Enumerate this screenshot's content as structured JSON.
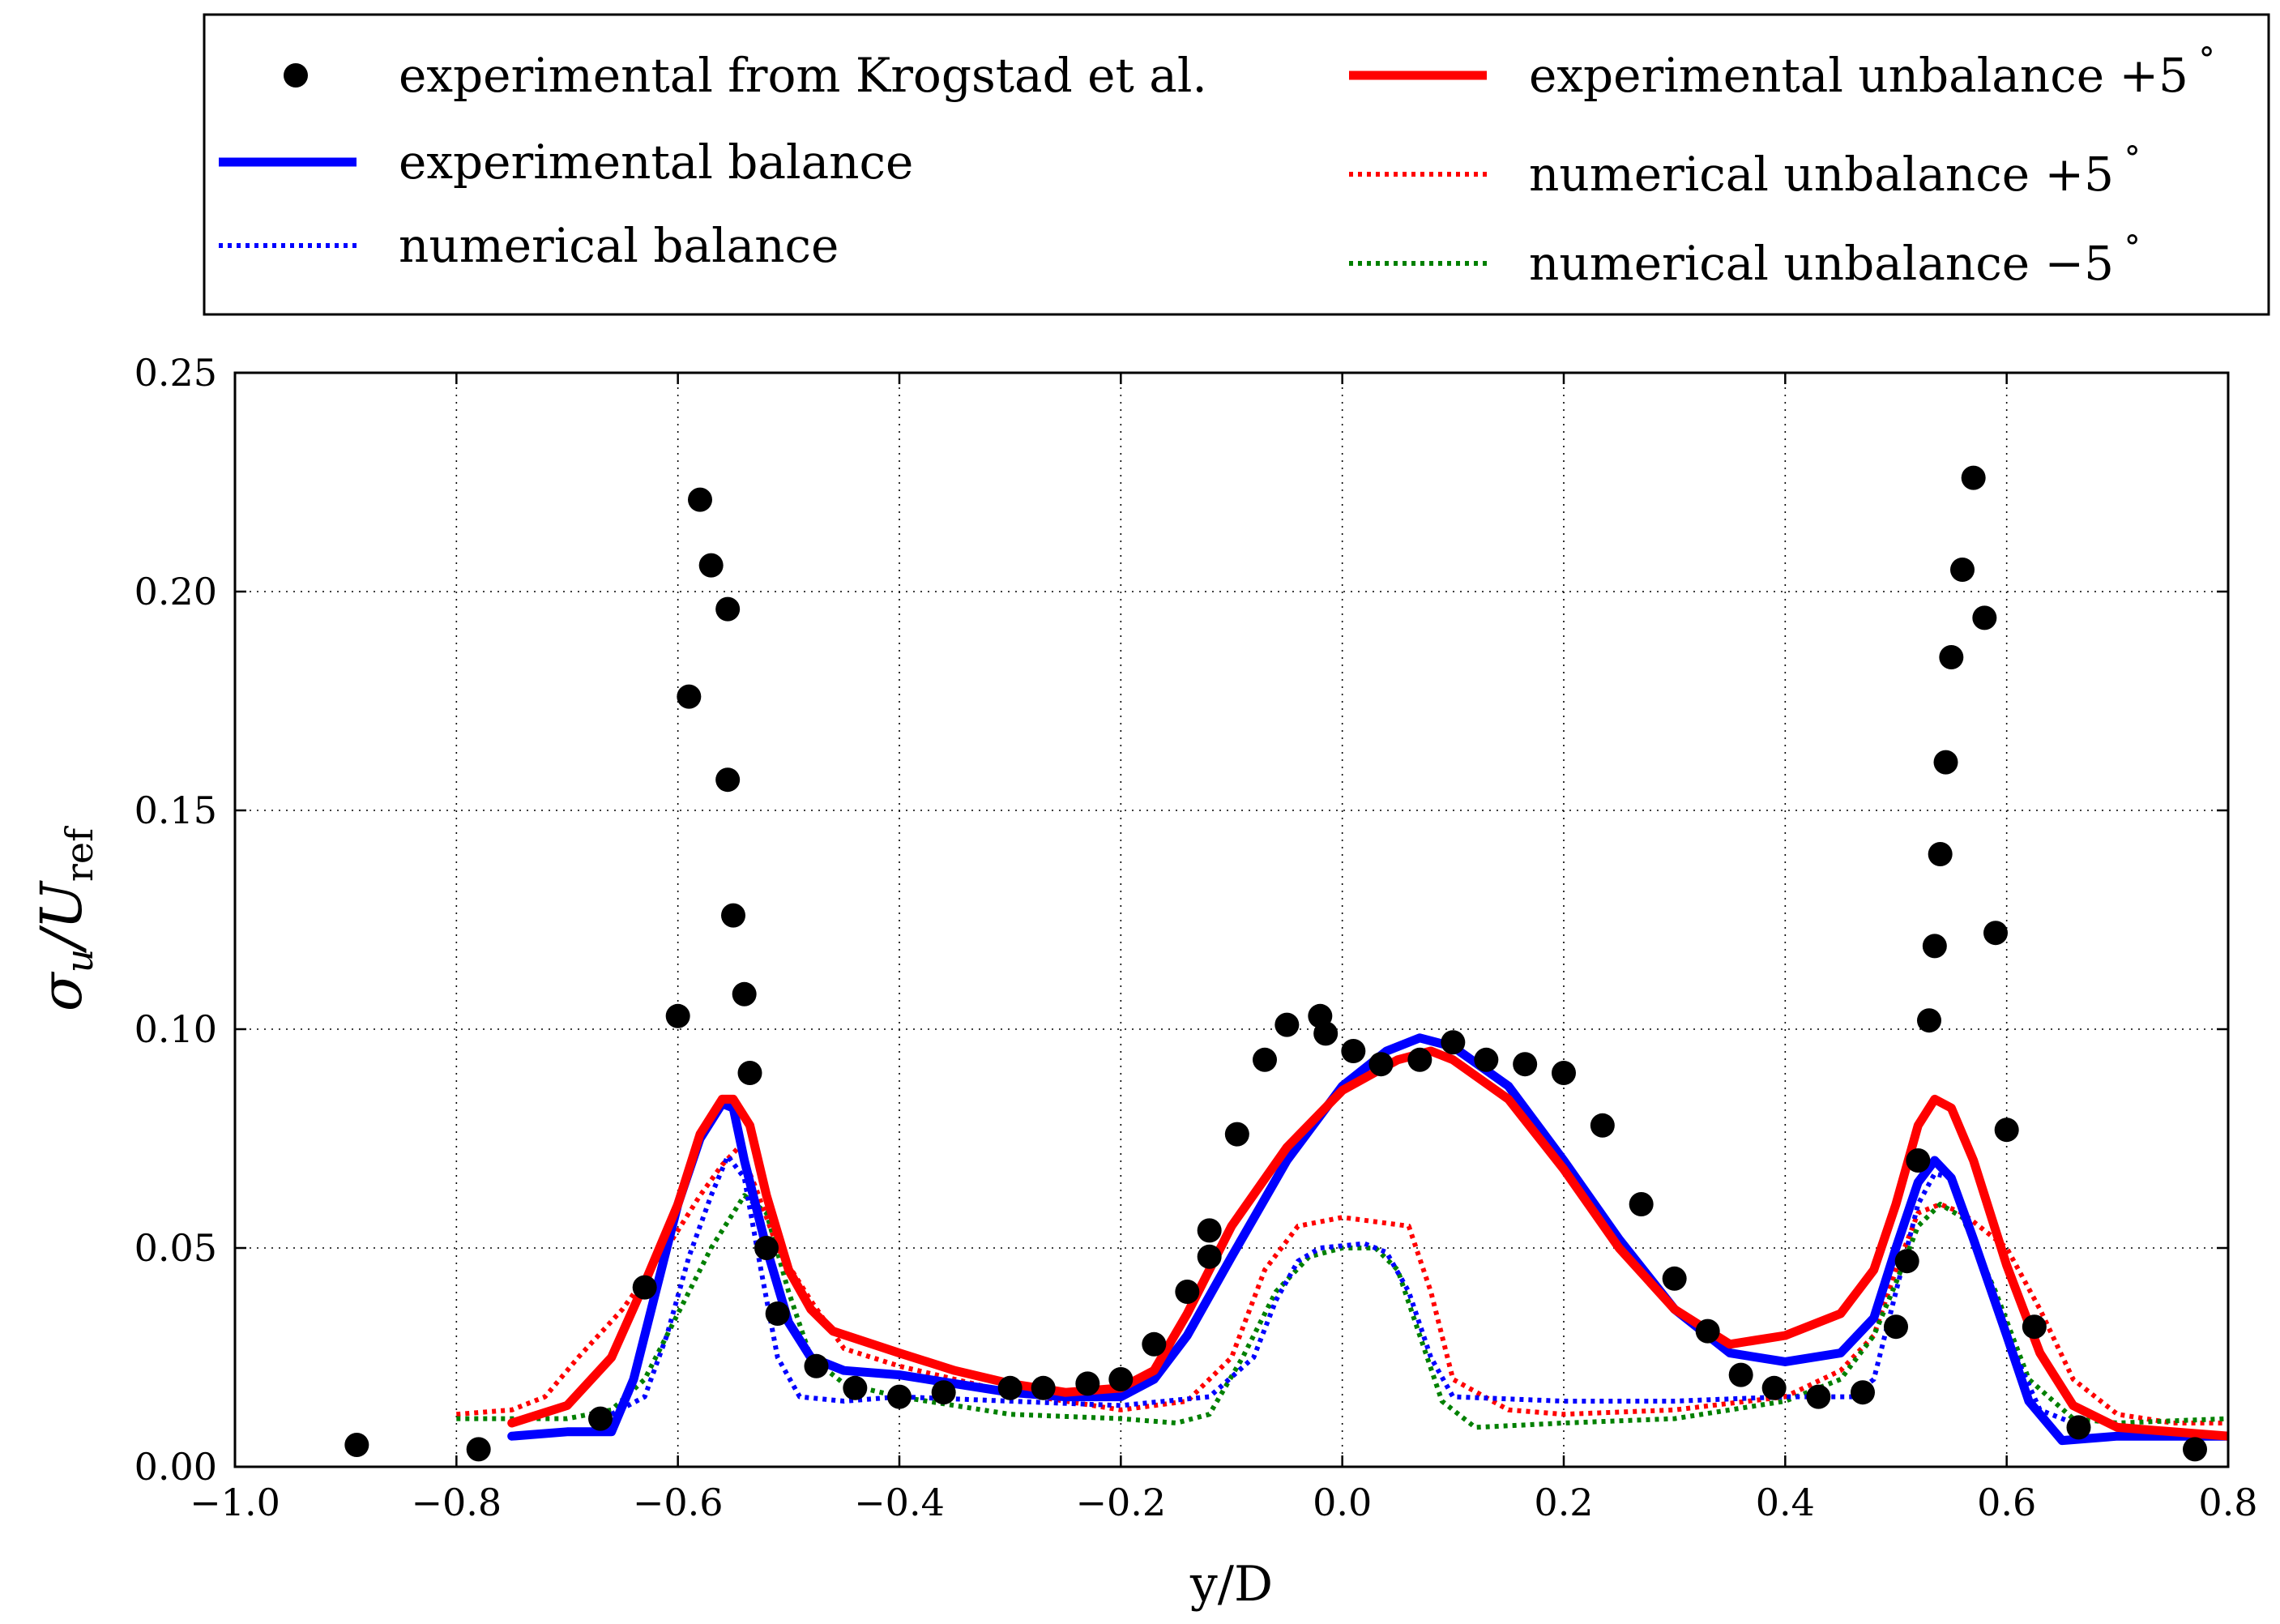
{
  "chart_data": {
    "type": "line",
    "title": "",
    "xlabel": "y/D",
    "ylabel": {
      "symbol": "σ",
      "sub": "u",
      "sep": "/",
      "denom": "U",
      "denom_sub": "ref"
    },
    "xlim": [
      -1.0,
      0.8
    ],
    "ylim": [
      0.0,
      0.25
    ],
    "grid": true,
    "legend_position": "top (outside, above plot)",
    "xticks": [
      -1.0,
      -0.8,
      -0.6,
      -0.4,
      -0.2,
      0.0,
      0.2,
      0.4,
      0.6,
      0.8
    ],
    "xtick_labels": [
      "−1.0",
      "−0.8",
      "−0.6",
      "−0.4",
      "−0.2",
      "0.0",
      "0.2",
      "0.4",
      "0.6",
      "0.8"
    ],
    "yticks": [
      0.0,
      0.05,
      0.1,
      0.15,
      0.2,
      0.25
    ],
    "ytick_labels": [
      "0.00",
      "0.05",
      "0.10",
      "0.15",
      "0.20",
      "0.25"
    ],
    "series": [
      {
        "name": "experimental from Krogstad et al.",
        "legend_text": "experimental from Krogstad et al.",
        "style": "markers",
        "color": "#000000",
        "points": [
          [
            -0.89,
            0.005
          ],
          [
            -0.78,
            0.004
          ],
          [
            -0.67,
            0.011
          ],
          [
            -0.63,
            0.041
          ],
          [
            -0.6,
            0.103
          ],
          [
            -0.59,
            0.176
          ],
          [
            -0.58,
            0.221
          ],
          [
            -0.57,
            0.206
          ],
          [
            -0.555,
            0.196
          ],
          [
            -0.555,
            0.157
          ],
          [
            -0.55,
            0.126
          ],
          [
            -0.54,
            0.108
          ],
          [
            -0.535,
            0.09
          ],
          [
            -0.52,
            0.05
          ],
          [
            -0.51,
            0.035
          ],
          [
            -0.475,
            0.023
          ],
          [
            -0.44,
            0.018
          ],
          [
            -0.4,
            0.016
          ],
          [
            -0.36,
            0.017
          ],
          [
            -0.3,
            0.018
          ],
          [
            -0.27,
            0.018
          ],
          [
            -0.23,
            0.019
          ],
          [
            -0.2,
            0.02
          ],
          [
            -0.17,
            0.028
          ],
          [
            -0.14,
            0.04
          ],
          [
            -0.12,
            0.048
          ],
          [
            -0.12,
            0.054
          ],
          [
            -0.095,
            0.076
          ],
          [
            -0.07,
            0.093
          ],
          [
            -0.05,
            0.101
          ],
          [
            -0.02,
            0.103
          ],
          [
            -0.015,
            0.099
          ],
          [
            0.01,
            0.095
          ],
          [
            0.035,
            0.092
          ],
          [
            0.07,
            0.093
          ],
          [
            0.1,
            0.097
          ],
          [
            0.13,
            0.093
          ],
          [
            0.165,
            0.092
          ],
          [
            0.2,
            0.09
          ],
          [
            0.235,
            0.078
          ],
          [
            0.27,
            0.06
          ],
          [
            0.3,
            0.043
          ],
          [
            0.33,
            0.031
          ],
          [
            0.36,
            0.021
          ],
          [
            0.39,
            0.018
          ],
          [
            0.43,
            0.016
          ],
          [
            0.47,
            0.017
          ],
          [
            0.5,
            0.032
          ],
          [
            0.51,
            0.047
          ],
          [
            0.52,
            0.07
          ],
          [
            0.53,
            0.102
          ],
          [
            0.535,
            0.119
          ],
          [
            0.54,
            0.14
          ],
          [
            0.545,
            0.161
          ],
          [
            0.55,
            0.185
          ],
          [
            0.56,
            0.205
          ],
          [
            0.57,
            0.226
          ],
          [
            0.58,
            0.194
          ],
          [
            0.59,
            0.122
          ],
          [
            0.6,
            0.077
          ],
          [
            0.625,
            0.032
          ],
          [
            0.665,
            0.009
          ],
          [
            0.77,
            0.004
          ]
        ]
      },
      {
        "name": "experimental balance",
        "legend_text": "experimental balance",
        "style": "solid",
        "color": "#0000ff",
        "points": [
          [
            -0.75,
            0.007
          ],
          [
            -0.7,
            0.008
          ],
          [
            -0.66,
            0.008
          ],
          [
            -0.64,
            0.02
          ],
          [
            -0.62,
            0.04
          ],
          [
            -0.6,
            0.06
          ],
          [
            -0.58,
            0.075
          ],
          [
            -0.56,
            0.083
          ],
          [
            -0.55,
            0.082
          ],
          [
            -0.54,
            0.07
          ],
          [
            -0.52,
            0.05
          ],
          [
            -0.5,
            0.033
          ],
          [
            -0.48,
            0.025
          ],
          [
            -0.45,
            0.022
          ],
          [
            -0.4,
            0.021
          ],
          [
            -0.35,
            0.019
          ],
          [
            -0.3,
            0.017
          ],
          [
            -0.25,
            0.016
          ],
          [
            -0.2,
            0.016
          ],
          [
            -0.17,
            0.02
          ],
          [
            -0.14,
            0.03
          ],
          [
            -0.1,
            0.048
          ],
          [
            -0.05,
            0.07
          ],
          [
            0.0,
            0.087
          ],
          [
            0.04,
            0.095
          ],
          [
            0.07,
            0.098
          ],
          [
            0.1,
            0.096
          ],
          [
            0.15,
            0.087
          ],
          [
            0.2,
            0.07
          ],
          [
            0.25,
            0.052
          ],
          [
            0.3,
            0.036
          ],
          [
            0.35,
            0.026
          ],
          [
            0.4,
            0.024
          ],
          [
            0.45,
            0.026
          ],
          [
            0.48,
            0.034
          ],
          [
            0.5,
            0.05
          ],
          [
            0.52,
            0.065
          ],
          [
            0.535,
            0.07
          ],
          [
            0.55,
            0.066
          ],
          [
            0.57,
            0.052
          ],
          [
            0.6,
            0.03
          ],
          [
            0.62,
            0.015
          ],
          [
            0.65,
            0.006
          ],
          [
            0.7,
            0.007
          ],
          [
            0.8,
            0.007
          ]
        ]
      },
      {
        "name": "numerical balance",
        "legend_text": "numerical balance",
        "style": "dotted",
        "color": "#0000ff",
        "points": [
          [
            -0.66,
            0.012
          ],
          [
            -0.63,
            0.016
          ],
          [
            -0.61,
            0.03
          ],
          [
            -0.59,
            0.048
          ],
          [
            -0.57,
            0.062
          ],
          [
            -0.555,
            0.071
          ],
          [
            -0.54,
            0.066
          ],
          [
            -0.525,
            0.045
          ],
          [
            -0.51,
            0.025
          ],
          [
            -0.49,
            0.016
          ],
          [
            -0.45,
            0.015
          ],
          [
            -0.4,
            0.016
          ],
          [
            -0.3,
            0.015
          ],
          [
            -0.2,
            0.014
          ],
          [
            -0.12,
            0.016
          ],
          [
            -0.08,
            0.025
          ],
          [
            -0.06,
            0.038
          ],
          [
            -0.04,
            0.047
          ],
          [
            -0.02,
            0.05
          ],
          [
            0.02,
            0.051
          ],
          [
            0.04,
            0.049
          ],
          [
            0.06,
            0.04
          ],
          [
            0.08,
            0.025
          ],
          [
            0.1,
            0.016
          ],
          [
            0.2,
            0.015
          ],
          [
            0.3,
            0.015
          ],
          [
            0.4,
            0.016
          ],
          [
            0.46,
            0.016
          ],
          [
            0.48,
            0.02
          ],
          [
            0.5,
            0.04
          ],
          [
            0.52,
            0.06
          ],
          [
            0.535,
            0.067
          ],
          [
            0.55,
            0.066
          ],
          [
            0.57,
            0.052
          ],
          [
            0.6,
            0.03
          ],
          [
            0.63,
            0.013
          ],
          [
            0.66,
            0.01
          ]
        ]
      },
      {
        "name": "experimental unbalance +5°",
        "legend_text": "experimental unbalance +5",
        "style": "solid",
        "color": "#ff0000",
        "points": [
          [
            -0.75,
            0.01
          ],
          [
            -0.7,
            0.014
          ],
          [
            -0.66,
            0.025
          ],
          [
            -0.63,
            0.042
          ],
          [
            -0.6,
            0.06
          ],
          [
            -0.58,
            0.076
          ],
          [
            -0.56,
            0.084
          ],
          [
            -0.55,
            0.084
          ],
          [
            -0.535,
            0.078
          ],
          [
            -0.52,
            0.062
          ],
          [
            -0.5,
            0.045
          ],
          [
            -0.48,
            0.036
          ],
          [
            -0.46,
            0.031
          ],
          [
            -0.4,
            0.026
          ],
          [
            -0.35,
            0.022
          ],
          [
            -0.3,
            0.019
          ],
          [
            -0.25,
            0.017
          ],
          [
            -0.2,
            0.018
          ],
          [
            -0.17,
            0.022
          ],
          [
            -0.14,
            0.035
          ],
          [
            -0.1,
            0.055
          ],
          [
            -0.05,
            0.073
          ],
          [
            0.0,
            0.086
          ],
          [
            0.05,
            0.093
          ],
          [
            0.08,
            0.095
          ],
          [
            0.1,
            0.093
          ],
          [
            0.15,
            0.084
          ],
          [
            0.2,
            0.068
          ],
          [
            0.25,
            0.05
          ],
          [
            0.3,
            0.036
          ],
          [
            0.35,
            0.028
          ],
          [
            0.4,
            0.03
          ],
          [
            0.45,
            0.035
          ],
          [
            0.48,
            0.045
          ],
          [
            0.5,
            0.06
          ],
          [
            0.52,
            0.078
          ],
          [
            0.535,
            0.084
          ],
          [
            0.55,
            0.082
          ],
          [
            0.57,
            0.07
          ],
          [
            0.6,
            0.046
          ],
          [
            0.63,
            0.026
          ],
          [
            0.66,
            0.014
          ],
          [
            0.7,
            0.009
          ],
          [
            0.8,
            0.007
          ]
        ]
      },
      {
        "name": "numerical unbalance +5°",
        "legend_text": "numerical unbalance +5",
        "style": "dotted",
        "color": "#ff0000",
        "points": [
          [
            -0.8,
            0.012
          ],
          [
            -0.75,
            0.013
          ],
          [
            -0.72,
            0.016
          ],
          [
            -0.69,
            0.025
          ],
          [
            -0.65,
            0.036
          ],
          [
            -0.61,
            0.05
          ],
          [
            -0.58,
            0.062
          ],
          [
            -0.56,
            0.069
          ],
          [
            -0.545,
            0.073
          ],
          [
            -0.53,
            0.064
          ],
          [
            -0.51,
            0.05
          ],
          [
            -0.48,
            0.038
          ],
          [
            -0.45,
            0.027
          ],
          [
            -0.4,
            0.023
          ],
          [
            -0.3,
            0.017
          ],
          [
            -0.2,
            0.013
          ],
          [
            -0.14,
            0.015
          ],
          [
            -0.1,
            0.025
          ],
          [
            -0.07,
            0.045
          ],
          [
            -0.04,
            0.055
          ],
          [
            0.0,
            0.057
          ],
          [
            0.03,
            0.056
          ],
          [
            0.06,
            0.055
          ],
          [
            0.08,
            0.04
          ],
          [
            0.1,
            0.02
          ],
          [
            0.15,
            0.013
          ],
          [
            0.2,
            0.012
          ],
          [
            0.3,
            0.013
          ],
          [
            0.4,
            0.016
          ],
          [
            0.45,
            0.022
          ],
          [
            0.48,
            0.03
          ],
          [
            0.5,
            0.045
          ],
          [
            0.52,
            0.058
          ],
          [
            0.54,
            0.06
          ],
          [
            0.56,
            0.058
          ],
          [
            0.6,
            0.05
          ],
          [
            0.63,
            0.036
          ],
          [
            0.66,
            0.02
          ],
          [
            0.7,
            0.012
          ],
          [
            0.75,
            0.01
          ],
          [
            0.8,
            0.01
          ]
        ]
      },
      {
        "name": "numerical unbalance −5°",
        "legend_text": "numerical unbalance −5",
        "style": "dotted",
        "color": "#008000",
        "points": [
          [
            -0.8,
            0.011
          ],
          [
            -0.7,
            0.011
          ],
          [
            -0.66,
            0.013
          ],
          [
            -0.63,
            0.02
          ],
          [
            -0.6,
            0.035
          ],
          [
            -0.57,
            0.05
          ],
          [
            -0.54,
            0.062
          ],
          [
            -0.52,
            0.058
          ],
          [
            -0.5,
            0.04
          ],
          [
            -0.48,
            0.025
          ],
          [
            -0.45,
            0.019
          ],
          [
            -0.4,
            0.016
          ],
          [
            -0.3,
            0.012
          ],
          [
            -0.2,
            0.011
          ],
          [
            -0.15,
            0.01
          ],
          [
            -0.12,
            0.012
          ],
          [
            -0.09,
            0.025
          ],
          [
            -0.06,
            0.04
          ],
          [
            -0.03,
            0.048
          ],
          [
            0.0,
            0.05
          ],
          [
            0.03,
            0.05
          ],
          [
            0.05,
            0.045
          ],
          [
            0.07,
            0.03
          ],
          [
            0.09,
            0.015
          ],
          [
            0.12,
            0.009
          ],
          [
            0.2,
            0.01
          ],
          [
            0.3,
            0.011
          ],
          [
            0.4,
            0.015
          ],
          [
            0.45,
            0.02
          ],
          [
            0.48,
            0.03
          ],
          [
            0.5,
            0.042
          ],
          [
            0.52,
            0.055
          ],
          [
            0.54,
            0.06
          ],
          [
            0.56,
            0.057
          ],
          [
            0.59,
            0.04
          ],
          [
            0.62,
            0.02
          ],
          [
            0.66,
            0.011
          ],
          [
            0.7,
            0.01
          ],
          [
            0.8,
            0.011
          ]
        ]
      }
    ]
  }
}
